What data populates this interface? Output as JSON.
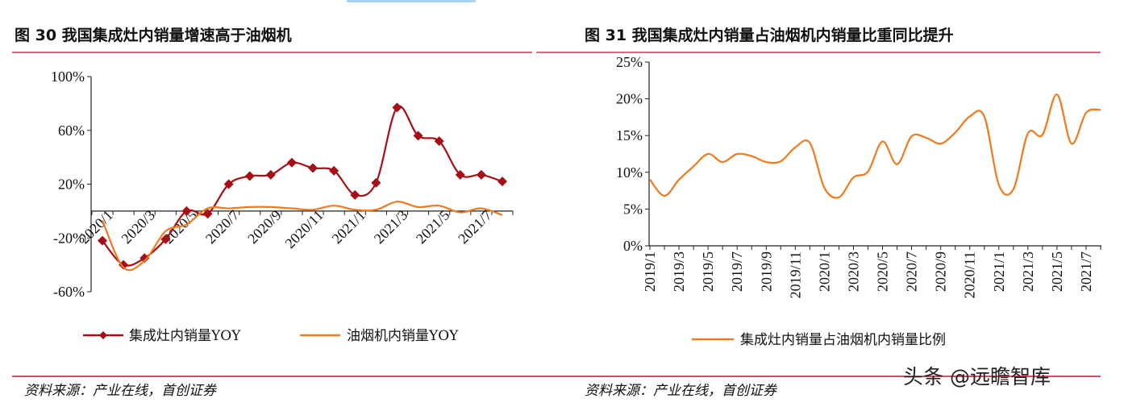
{
  "colors": {
    "series_dark_red": "#A50F15",
    "series_orange": "#F07A1E",
    "rule_red": "#C8102E",
    "top_bar_blue": "#A9D3F0"
  },
  "watermark": "头条 @远瞻智库",
  "chart_data": [
    {
      "type": "line",
      "title": "图 30 我国集成灶内销量增速高于油烟机",
      "source": "资料来源：产业在线，首创证券",
      "x": [
        "2020/1",
        "2020/2",
        "2020/3",
        "2020/4",
        "2020/5",
        "2020/6",
        "2020/7",
        "2020/8",
        "2020/9",
        "2020/10",
        "2020/11",
        "2020/12",
        "2021/1",
        "2021/2",
        "2021/3",
        "2021/4",
        "2021/5",
        "2021/6",
        "2021/7",
        "2021/8"
      ],
      "xtick_labels": [
        "2020/1",
        "2020/3",
        "2020/5",
        "2020/7",
        "2020/9",
        "2020/11",
        "2021/1",
        "2021/3",
        "2021/5",
        "2021/7"
      ],
      "ylim": [
        -60,
        100
      ],
      "yticks": [
        "100%",
        "60%",
        "20%",
        "-20%",
        "-60%"
      ],
      "ytick_values": [
        100,
        60,
        20,
        -20,
        -60
      ],
      "legend": "bottom",
      "grid": false,
      "series": [
        {
          "name": "集成灶内销量YOY",
          "color": "#A50F15",
          "marker": "diamond",
          "values": [
            -22,
            -40,
            -35,
            -21,
            0,
            -2,
            20,
            26,
            27,
            36,
            32,
            30,
            12,
            21,
            77,
            56,
            52,
            27,
            27,
            22
          ]
        },
        {
          "name": "油烟机内销量YOY",
          "color": "#F07A1E",
          "marker": "none",
          "values": [
            -7,
            -42,
            -37,
            -15,
            -10,
            2,
            2,
            3,
            3,
            2,
            1,
            4,
            1,
            1,
            7,
            3,
            4,
            -1,
            2,
            -3
          ]
        }
      ]
    },
    {
      "type": "line",
      "title": "图 31 我国集成灶内销量占油烟机内销量比重同比提升",
      "source": "资料来源：产业在线，首创证券",
      "x": [
        "2019/1",
        "2019/2",
        "2019/3",
        "2019/4",
        "2019/5",
        "2019/6",
        "2019/7",
        "2019/8",
        "2019/9",
        "2019/10",
        "2019/11",
        "2019/12",
        "2020/1",
        "2020/2",
        "2020/3",
        "2020/4",
        "2020/5",
        "2020/6",
        "2020/7",
        "2020/8",
        "2020/9",
        "2020/10",
        "2020/11",
        "2020/12",
        "2021/1",
        "2021/2",
        "2021/3",
        "2021/4",
        "2021/5",
        "2021/6",
        "2021/7",
        "2021/8"
      ],
      "xtick_labels": [
        "2019/1",
        "2019/3",
        "2019/5",
        "2019/7",
        "2019/9",
        "2019/11",
        "2020/1",
        "2020/3",
        "2020/5",
        "2020/7",
        "2020/9",
        "2020/11",
        "2021/1",
        "2021/3",
        "2021/5",
        "2021/7"
      ],
      "ylim": [
        0,
        25
      ],
      "yticks": [
        "25%",
        "20%",
        "15%",
        "10%",
        "5%",
        "0%"
      ],
      "ytick_values": [
        25,
        20,
        15,
        10,
        5,
        0
      ],
      "legend": "bottom",
      "grid": false,
      "series": [
        {
          "name": "集成灶内销量占油烟机内销量比例",
          "color": "#F07A1E",
          "marker": "none",
          "values": [
            9,
            6.8,
            9,
            10.8,
            12.5,
            11.4,
            12.5,
            12.2,
            11.4,
            11.5,
            13.4,
            14,
            7.9,
            6.6,
            9.3,
            10.1,
            14.2,
            11.1,
            14.9,
            14.7,
            13.9,
            15.4,
            17.6,
            17.6,
            8.3,
            7.7,
            15.3,
            15.1,
            20.6,
            13.9,
            18.1,
            18.5
          ]
        }
      ]
    }
  ]
}
